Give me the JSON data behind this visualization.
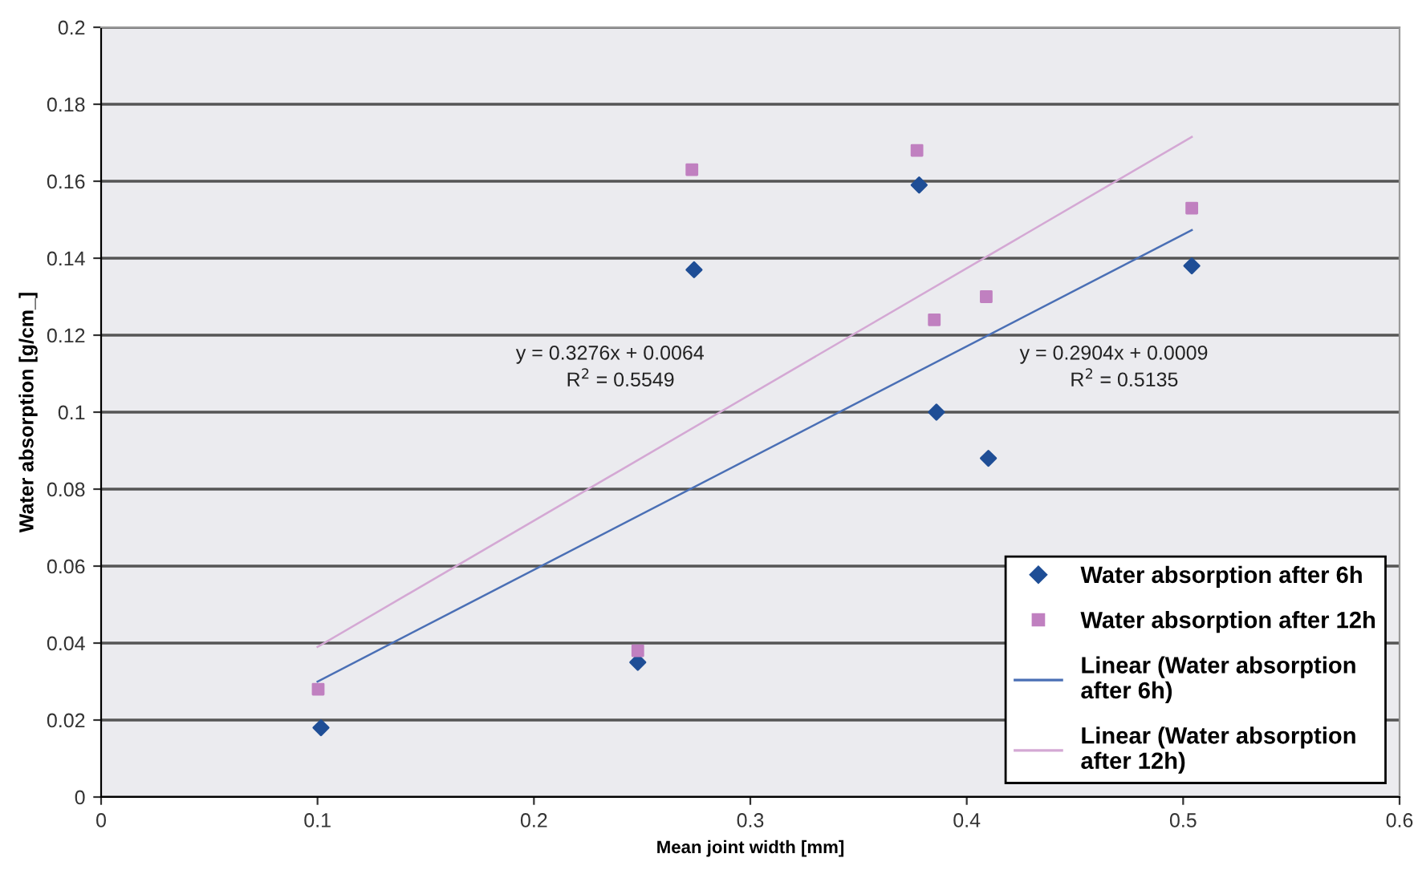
{
  "chart_data": {
    "type": "scatter",
    "xlabel": "Mean joint width [mm]",
    "ylabel": "Water absorption [g/cm_]",
    "xlim": [
      0,
      0.6
    ],
    "xticks": [
      0,
      0.1,
      0.2,
      0.3,
      0.4,
      0.5,
      0.6
    ],
    "ylim": [
      0,
      0.2
    ],
    "yticks": [
      0,
      0.02,
      0.04,
      0.06,
      0.08,
      0.1,
      0.12,
      0.14,
      0.16,
      0.18,
      0.2
    ],
    "grid": "y",
    "legend": "bottom right",
    "series": [
      {
        "name": "Water absorption after 6h",
        "marker": "diamond",
        "color": "#1f4e96",
        "x": [
          0.1016,
          0.248,
          0.274,
          0.378,
          0.386,
          0.41,
          0.504
        ],
        "values": [
          0.018,
          0.035,
          0.137,
          0.159,
          0.1,
          0.088,
          0.138
        ]
      },
      {
        "name": "Water absorption after 12h",
        "marker": "square",
        "color": "#c080c0",
        "x": [
          0.1003,
          0.248,
          0.273,
          0.377,
          0.385,
          0.409,
          0.504
        ],
        "values": [
          0.028,
          0.038,
          0.163,
          0.168,
          0.124,
          0.13,
          0.153
        ]
      },
      {
        "name": "Linear (Water absorption after 6h)",
        "type": "line",
        "line_style": "solid",
        "color": "#4a6fb5",
        "x": [
          0.1,
          0.504
        ],
        "values": [
          0.03,
          0.1473
        ]
      },
      {
        "name": "Linear (Water absorption after 12h)",
        "type": "line",
        "line_style": "solid",
        "color": "#d4a8d4",
        "x": [
          0.1,
          0.504
        ],
        "values": [
          0.039,
          0.1715
        ]
      }
    ],
    "annotations": [
      "y = 0.3276x + 0.0064",
      "R$^{2}$ = 0.5549",
      "y = 0.2904x + 0.0009",
      "R$^{2}$ = 0.5135"
    ]
  }
}
